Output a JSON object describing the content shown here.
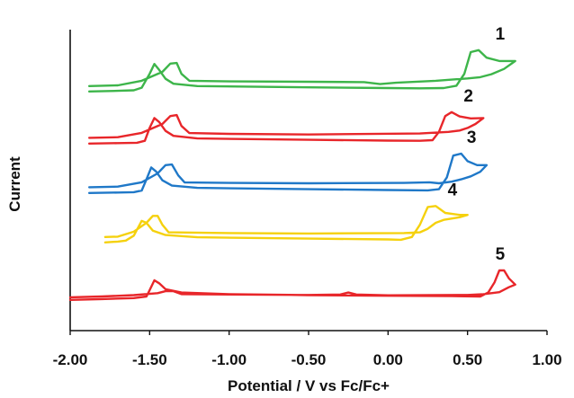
{
  "chart_data": {
    "type": "line",
    "title": "",
    "xlabel": "Potential  / V vs Fc/Fc+",
    "ylabel": "Current",
    "xlim": [
      -2.0,
      1.0
    ],
    "x_ticks": [
      "-2.00",
      "-1.50",
      "-1.00",
      "-0.50",
      "0.00",
      "0.50",
      "1.00"
    ],
    "y_ticks_shown": false,
    "grid": false,
    "legend": "inline labels at right end of each trace",
    "series": [
      {
        "name": "1",
        "color": "#3db54a",
        "forward": [
          [
            -1.88,
            0.99
          ],
          [
            -1.7,
            0.96
          ],
          [
            -1.6,
            0.93
          ],
          [
            -1.55,
            0.8
          ],
          [
            -1.5,
            0.1
          ],
          [
            -1.47,
            -0.4
          ],
          [
            -1.44,
            -0.1
          ],
          [
            -1.4,
            0.35
          ],
          [
            -1.35,
            0.6
          ],
          [
            -1.2,
            0.72
          ],
          [
            -0.5,
            0.78
          ],
          [
            0.0,
            0.82
          ],
          [
            0.2,
            0.83
          ],
          [
            0.35,
            0.82
          ],
          [
            0.43,
            0.7
          ],
          [
            0.48,
            0.1
          ],
          [
            0.52,
            -1.0
          ],
          [
            0.57,
            -1.1
          ],
          [
            0.62,
            -0.72
          ],
          [
            0.7,
            -0.55
          ],
          [
            0.8,
            -0.55
          ]
        ],
        "reverse": [
          [
            0.8,
            -0.55
          ],
          [
            0.73,
            -0.15
          ],
          [
            0.65,
            0.12
          ],
          [
            0.58,
            0.27
          ],
          [
            0.5,
            0.33
          ],
          [
            0.3,
            0.45
          ],
          [
            0.05,
            0.55
          ],
          [
            -0.05,
            0.62
          ],
          [
            -0.15,
            0.52
          ],
          [
            -0.5,
            0.5
          ],
          [
            -1.0,
            0.48
          ],
          [
            -1.25,
            0.45
          ],
          [
            -1.3,
            0.1
          ],
          [
            -1.33,
            -0.45
          ],
          [
            -1.37,
            -0.42
          ],
          [
            -1.42,
            0.0
          ],
          [
            -1.55,
            0.45
          ],
          [
            -1.7,
            0.68
          ],
          [
            -1.88,
            0.72
          ]
        ]
      },
      {
        "name": "2",
        "color": "#e8262a",
        "forward": [
          [
            -1.88,
            0.99
          ],
          [
            -1.7,
            0.97
          ],
          [
            -1.58,
            0.95
          ],
          [
            -1.53,
            0.85
          ],
          [
            -1.5,
            0.2
          ],
          [
            -1.47,
            -0.3
          ],
          [
            -1.44,
            -0.1
          ],
          [
            -1.4,
            0.35
          ],
          [
            -1.35,
            0.6
          ],
          [
            -1.2,
            0.73
          ],
          [
            -0.5,
            0.8
          ],
          [
            0.0,
            0.84
          ],
          [
            0.2,
            0.85
          ],
          [
            0.28,
            0.82
          ],
          [
            0.32,
            0.4
          ],
          [
            0.36,
            -0.4
          ],
          [
            0.4,
            -0.6
          ],
          [
            0.45,
            -0.38
          ],
          [
            0.52,
            -0.28
          ],
          [
            0.6,
            -0.3
          ]
        ],
        "reverse": [
          [
            0.6,
            -0.3
          ],
          [
            0.55,
            0.0
          ],
          [
            0.5,
            0.2
          ],
          [
            0.45,
            0.33
          ],
          [
            0.38,
            0.4
          ],
          [
            0.2,
            0.48
          ],
          [
            -0.5,
            0.53
          ],
          [
            -1.0,
            0.5
          ],
          [
            -1.25,
            0.46
          ],
          [
            -1.3,
            0.1
          ],
          [
            -1.33,
            -0.45
          ],
          [
            -1.37,
            -0.4
          ],
          [
            -1.42,
            0.0
          ],
          [
            -1.55,
            0.45
          ],
          [
            -1.7,
            0.67
          ],
          [
            -1.88,
            0.7
          ]
        ]
      },
      {
        "name": "3",
        "color": "#1f78c8",
        "forward": [
          [
            -1.88,
            0.99
          ],
          [
            -1.7,
            0.97
          ],
          [
            -1.6,
            0.95
          ],
          [
            -1.55,
            0.87
          ],
          [
            -1.52,
            0.3
          ],
          [
            -1.49,
            -0.3
          ],
          [
            -1.46,
            -0.1
          ],
          [
            -1.42,
            0.35
          ],
          [
            -1.36,
            0.62
          ],
          [
            -1.2,
            0.73
          ],
          [
            -0.5,
            0.8
          ],
          [
            0.0,
            0.84
          ],
          [
            0.25,
            0.86
          ],
          [
            0.32,
            0.8
          ],
          [
            0.37,
            0.2
          ],
          [
            0.41,
            -0.9
          ],
          [
            0.46,
            -1.0
          ],
          [
            0.5,
            -0.62
          ],
          [
            0.56,
            -0.42
          ],
          [
            0.62,
            -0.42
          ]
        ],
        "reverse": [
          [
            0.62,
            -0.42
          ],
          [
            0.58,
            -0.08
          ],
          [
            0.52,
            0.15
          ],
          [
            0.46,
            0.3
          ],
          [
            0.4,
            0.42
          ],
          [
            0.32,
            0.5
          ],
          [
            0.26,
            0.45
          ],
          [
            0.1,
            0.48
          ],
          [
            -0.5,
            0.5
          ],
          [
            -1.0,
            0.48
          ],
          [
            -1.28,
            0.46
          ],
          [
            -1.32,
            0.1
          ],
          [
            -1.36,
            -0.45
          ],
          [
            -1.4,
            -0.42
          ],
          [
            -1.45,
            0.0
          ],
          [
            -1.55,
            0.45
          ],
          [
            -1.7,
            0.67
          ],
          [
            -1.88,
            0.7
          ]
        ]
      },
      {
        "name": "4",
        "color": "#f5d10d",
        "forward": [
          [
            -1.78,
            0.99
          ],
          [
            -1.7,
            0.95
          ],
          [
            -1.65,
            0.9
          ],
          [
            -1.6,
            0.65
          ],
          [
            -1.57,
            0.2
          ],
          [
            -1.55,
            -0.1
          ],
          [
            -1.52,
            0.0
          ],
          [
            -1.48,
            0.4
          ],
          [
            -1.4,
            0.62
          ],
          [
            -1.2,
            0.73
          ],
          [
            -0.5,
            0.8
          ],
          [
            0.0,
            0.84
          ],
          [
            0.08,
            0.86
          ],
          [
            0.15,
            0.72
          ],
          [
            0.2,
            0.1
          ],
          [
            0.25,
            -0.8
          ],
          [
            0.3,
            -0.85
          ],
          [
            0.36,
            -0.5
          ],
          [
            0.45,
            -0.4
          ],
          [
            0.5,
            -0.4
          ]
        ],
        "reverse": [
          [
            0.5,
            -0.4
          ],
          [
            0.45,
            -0.28
          ],
          [
            0.35,
            -0.15
          ],
          [
            0.3,
            0.0
          ],
          [
            0.25,
            0.3
          ],
          [
            0.2,
            0.48
          ],
          [
            0.1,
            0.52
          ],
          [
            -0.5,
            0.54
          ],
          [
            -1.0,
            0.52
          ],
          [
            -1.38,
            0.48
          ],
          [
            -1.42,
            0.1
          ],
          [
            -1.45,
            -0.35
          ],
          [
            -1.48,
            -0.35
          ],
          [
            -1.52,
            0.0
          ],
          [
            -1.6,
            0.45
          ],
          [
            -1.7,
            0.7
          ],
          [
            -1.78,
            0.72
          ]
        ]
      },
      {
        "name": "5",
        "color": "#e8262a",
        "forward": [
          [
            -2.0,
            0.99
          ],
          [
            -1.8,
            0.95
          ],
          [
            -1.6,
            0.9
          ],
          [
            -1.52,
            0.82
          ],
          [
            -1.5,
            0.5
          ],
          [
            -1.47,
            0.0
          ],
          [
            -1.44,
            0.15
          ],
          [
            -1.4,
            0.45
          ],
          [
            -1.3,
            0.62
          ],
          [
            -1.0,
            0.7
          ],
          [
            -0.5,
            0.75
          ],
          [
            0.0,
            0.78
          ],
          [
            0.4,
            0.8
          ],
          [
            0.58,
            0.82
          ],
          [
            0.63,
            0.62
          ],
          [
            0.67,
            0.1
          ],
          [
            0.7,
            -0.5
          ],
          [
            0.73,
            -0.5
          ],
          [
            0.76,
            -0.1
          ],
          [
            0.8,
            0.22
          ]
        ],
        "reverse": [
          [
            0.8,
            0.22
          ],
          [
            0.76,
            0.35
          ],
          [
            0.7,
            0.6
          ],
          [
            0.6,
            0.7
          ],
          [
            0.5,
            0.74
          ],
          [
            0.0,
            0.76
          ],
          [
            -0.2,
            0.72
          ],
          [
            -0.25,
            0.62
          ],
          [
            -0.3,
            0.72
          ],
          [
            -0.5,
            0.74
          ],
          [
            -1.0,
            0.72
          ],
          [
            -1.3,
            0.7
          ],
          [
            -1.35,
            0.55
          ],
          [
            -1.4,
            0.55
          ],
          [
            -1.45,
            0.65
          ],
          [
            -1.6,
            0.75
          ],
          [
            -1.8,
            0.82
          ],
          [
            -2.0,
            0.86
          ]
        ]
      }
    ]
  }
}
